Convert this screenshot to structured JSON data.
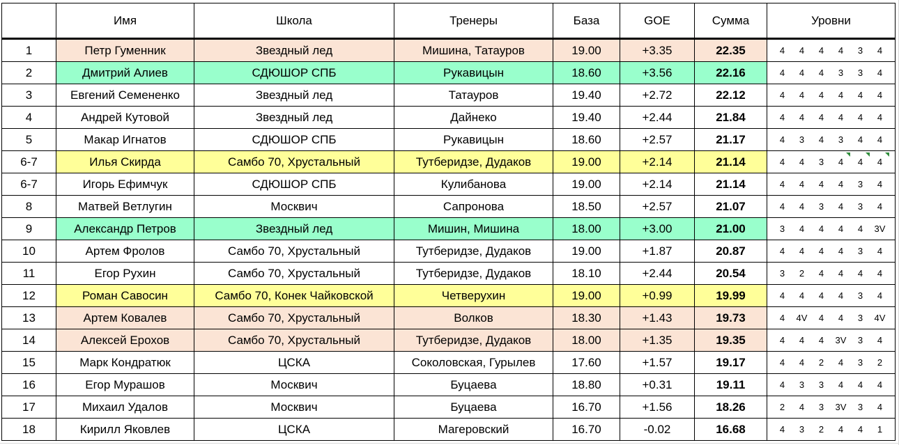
{
  "headers": {
    "place": "",
    "name": "Имя",
    "school": "Школа",
    "coaches": "Тренеры",
    "base": "База",
    "goe": "GOE",
    "sum": "Сумма",
    "levels": "Уровни"
  },
  "colors": {
    "pink": "#fbe4d5",
    "green": "#99ffcc",
    "yellow": "#ffff99",
    "marker_green": "#2e8b3a"
  },
  "rows": [
    {
      "place": "1",
      "name": "Петр Гуменник",
      "school": "Звездный лед",
      "coaches": "Мишина, Татауров",
      "base": "19.00",
      "goe": "+3.35",
      "sum": "22.35",
      "levels": [
        "4",
        "4",
        "4",
        "4",
        "3",
        "4"
      ],
      "highlight": "pink"
    },
    {
      "place": "2",
      "name": "Дмитрий Алиев",
      "school": "СДЮШОР СПБ",
      "coaches": "Рукавицын",
      "base": "18.60",
      "goe": "+3.56",
      "sum": "22.16",
      "levels": [
        "4",
        "4",
        "4",
        "3",
        "3",
        "4"
      ],
      "highlight": "green"
    },
    {
      "place": "3",
      "name": "Евгений Семененко",
      "school": "Звездный лед",
      "coaches": "Татауров",
      "base": "19.40",
      "goe": "+2.72",
      "sum": "22.12",
      "levels": [
        "4",
        "4",
        "4",
        "4",
        "4",
        "4"
      ],
      "highlight": ""
    },
    {
      "place": "4",
      "name": "Андрей Кутовой",
      "school": "Звездный лед",
      "coaches": "Дайнеко",
      "base": "19.40",
      "goe": "+2.44",
      "sum": "21.84",
      "levels": [
        "4",
        "4",
        "4",
        "4",
        "4",
        "4"
      ],
      "highlight": ""
    },
    {
      "place": "5",
      "name": "Макар Игнатов",
      "school": "СДЮШОР СПБ",
      "coaches": "Рукавицын",
      "base": "18.60",
      "goe": "+2.57",
      "sum": "21.17",
      "levels": [
        "4",
        "3",
        "4",
        "3",
        "4",
        "4"
      ],
      "highlight": ""
    },
    {
      "place": "6-7",
      "name": "Илья Скирда",
      "school": "Самбо 70, Хрустальный",
      "coaches": "Тутберидзе, Дудаков",
      "base": "19.00",
      "goe": "+2.14",
      "sum": "21.14",
      "levels": [
        "4",
        "4",
        "3",
        "4",
        "4",
        "4"
      ],
      "highlight": "yellow"
    },
    {
      "place": "6-7",
      "name": "Игорь Ефимчук",
      "school": "СДЮШОР СПБ",
      "coaches": "Кулибанова",
      "base": "19.00",
      "goe": "+2.14",
      "sum": "21.14",
      "levels": [
        "4",
        "4",
        "4",
        "4",
        "3",
        "4"
      ],
      "highlight": ""
    },
    {
      "place": "8",
      "name": "Матвей Ветлугин",
      "school": "Москвич",
      "coaches": "Сапронова",
      "base": "18.50",
      "goe": "+2.57",
      "sum": "21.07",
      "levels": [
        "4",
        "4",
        "3",
        "4",
        "3",
        "4"
      ],
      "highlight": ""
    },
    {
      "place": "9",
      "name": "Александр Петров",
      "school": "Звездный лед",
      "coaches": "Мишин, Мишина",
      "base": "18.00",
      "goe": "+3.00",
      "sum": "21.00",
      "levels": [
        "3",
        "4",
        "4",
        "4",
        "4",
        "3V"
      ],
      "highlight": "green"
    },
    {
      "place": "10",
      "name": "Артем Фролов",
      "school": "Самбо 70, Хрустальный",
      "coaches": "Тутберидзе, Дудаков",
      "base": "19.00",
      "goe": "+1.87",
      "sum": "20.87",
      "levels": [
        "4",
        "4",
        "4",
        "4",
        "3",
        "4"
      ],
      "highlight": ""
    },
    {
      "place": "11",
      "name": "Егор Рухин",
      "school": "Самбо 70, Хрустальный",
      "coaches": "Тутберидзе, Дудаков",
      "base": "18.10",
      "goe": "+2.44",
      "sum": "20.54",
      "levels": [
        "3",
        "2",
        "4",
        "4",
        "4",
        "4"
      ],
      "highlight": ""
    },
    {
      "place": "12",
      "name": "Роман Савосин",
      "school": "Самбо 70, Конек Чайковской",
      "coaches": "Четверухин",
      "base": "19.00",
      "goe": "+0.99",
      "sum": "19.99",
      "levels": [
        "4",
        "4",
        "4",
        "4",
        "3",
        "4"
      ],
      "highlight": "yellow"
    },
    {
      "place": "13",
      "name": "Артем Ковалев",
      "school": "Самбо 70, Хрустальный",
      "coaches": "Волков",
      "base": "18.30",
      "goe": "+1.43",
      "sum": "19.73",
      "levels": [
        "4",
        "4V",
        "4",
        "4",
        "3",
        "4V"
      ],
      "highlight": "pink"
    },
    {
      "place": "14",
      "name": "Алексей Ерохов",
      "school": "Самбо 70, Хрустальный",
      "coaches": "Тутберидзе, Дудаков",
      "base": "18.00",
      "goe": "+1.35",
      "sum": "19.35",
      "levels": [
        "4",
        "4",
        "4",
        "3V",
        "3",
        "4"
      ],
      "highlight": "pink"
    },
    {
      "place": "15",
      "name": "Марк Кондратюк",
      "school": "ЦСКА",
      "coaches": "Соколовская, Гурылев",
      "base": "17.60",
      "goe": "+1.57",
      "sum": "19.17",
      "levels": [
        "4",
        "4",
        "2",
        "4",
        "3",
        "2"
      ],
      "highlight": ""
    },
    {
      "place": "16",
      "name": "Егор Мурашов",
      "school": "Москвич",
      "coaches": "Буцаева",
      "base": "18.80",
      "goe": "+0.31",
      "sum": "19.11",
      "levels": [
        "4",
        "3",
        "3",
        "4",
        "4",
        "4"
      ],
      "highlight": ""
    },
    {
      "place": "17",
      "name": "Михаил Удалов",
      "school": "Москвич",
      "coaches": "Буцаева",
      "base": "16.70",
      "goe": "+1.56",
      "sum": "18.26",
      "levels": [
        "2",
        "4",
        "3",
        "3V",
        "3",
        "4"
      ],
      "highlight": ""
    },
    {
      "place": "18",
      "name": "Кирилл Яковлев",
      "school": "ЦСКА",
      "coaches": "Магеровский",
      "base": "16.70",
      "goe": "-0.02",
      "sum": "16.68",
      "levels": [
        "4",
        "3",
        "2",
        "4",
        "4",
        "1"
      ],
      "highlight": ""
    }
  ]
}
